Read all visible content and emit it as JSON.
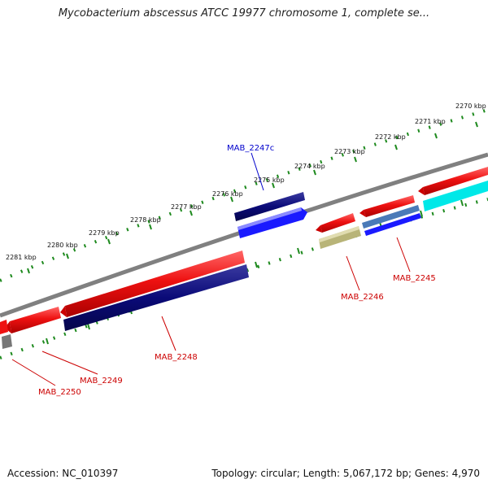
{
  "title": "Mycobacterium abscessus ATCC 19977 chromosome 1, complete se...",
  "footer": {
    "accession": "Accession: NC_010397",
    "summary": "Topology: circular; Length: 5,067,172 bp; Genes: 4,970"
  },
  "scale_labels": [
    "2270 kbp",
    "2271 kbp",
    "2272 kbp",
    "2273 kbp",
    "2274 kbp",
    "2275 kbp",
    "2276 kbp",
    "2277 kbp",
    "2278 kbp",
    "2279 kbp",
    "2280 kbp",
    "2281 kbp"
  ],
  "genes": {
    "forward": [
      "MAB_2247c"
    ],
    "reverse": [
      "MAB_2245",
      "MAB_2246",
      "MAB_2248",
      "MAB_2249",
      "MAB_2250"
    ]
  },
  "colors": {
    "backbone": "#808080",
    "tick": "#1e8a1e",
    "cds_red": "#ee1111",
    "gene_navy": "#0a0a78",
    "gene_blue": "#1a1aff",
    "gene_cyan": "#00e8e8",
    "gene_steel": "#4a7ab8",
    "gene_khaki": "#b8b478",
    "gene_gray": "#777777",
    "label_red": "#cc0000",
    "label_blue": "#0000cc"
  }
}
